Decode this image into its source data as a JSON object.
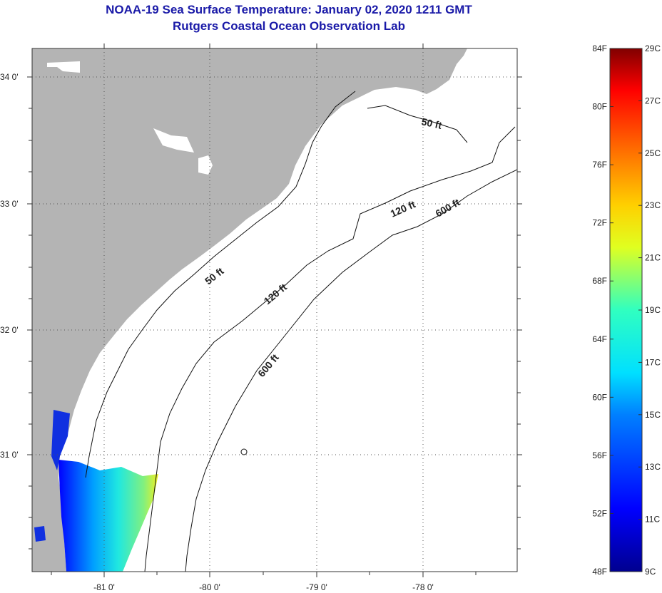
{
  "title_line1": "NOAA-19 Sea Surface Temperature:  January 02, 2020 1211 GMT",
  "title_line2": "Rutgers Coastal Ocean Observation Lab",
  "lat_labels": [
    "34 0'",
    "33 0'",
    "32 0'",
    "31 0'"
  ],
  "lon_labels": [
    "-81 0'",
    "-80 0'",
    "-79 0'",
    "-78 0'"
  ],
  "contours": {
    "c50a": "50 ft",
    "c50b": "50 ft",
    "c120a": "120 ft",
    "c120b": "120 ft",
    "c600a": "600 ft",
    "c600b": "600 ft"
  },
  "colorbar": {
    "f_labels": [
      "84F",
      "80F",
      "76F",
      "72F",
      "68F",
      "64F",
      "60F",
      "56F",
      "52F",
      "48F"
    ],
    "c_labels": [
      "29C",
      "27C",
      "25C",
      "23C",
      "21C",
      "19C",
      "17C",
      "15C",
      "13C",
      "11C",
      "9C"
    ]
  },
  "colors": {
    "land": "#b4b4b4",
    "title": "#1a1aa8"
  }
}
